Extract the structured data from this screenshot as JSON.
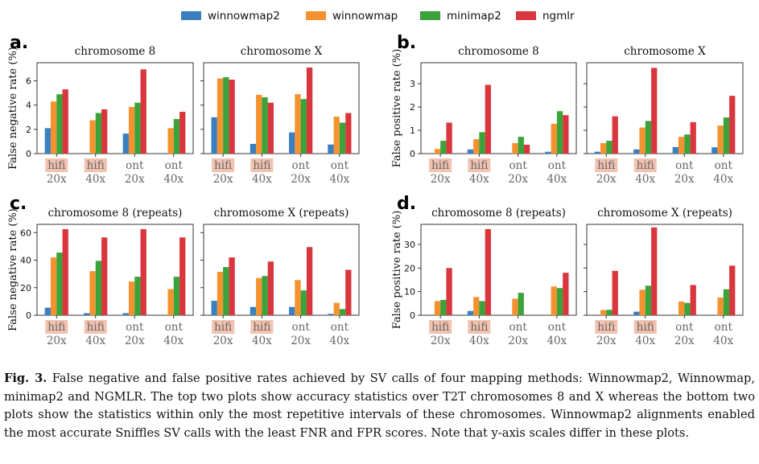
{
  "colors": {
    "winnowmap2": "#3a7fbf",
    "winnowmap": "#f5922f",
    "minimap2": "#3aa33a",
    "ngmlr": "#d9363e",
    "hifi_highlight": "#f2c2b0"
  },
  "legend": {
    "entries": [
      {
        "name": "winnowmap2",
        "color_key": "winnowmap2"
      },
      {
        "name": "winnowmap",
        "color_key": "winnowmap"
      },
      {
        "name": "minimap2",
        "color_key": "minimap2"
      },
      {
        "name": "ngmlr",
        "color_key": "ngmlr"
      }
    ]
  },
  "chart_data": [
    {
      "panel": "a.",
      "type": "bar",
      "ylabel": "False negative rate (%)",
      "ylim": [
        0,
        7.5
      ],
      "yticks": [
        0,
        2,
        4,
        6
      ],
      "categories": [
        [
          "hifi",
          "20x"
        ],
        [
          "hifi",
          "40x"
        ],
        [
          "ont",
          "20x"
        ],
        [
          "ont",
          "40x"
        ]
      ],
      "subplots": [
        {
          "title": "chromosome 8",
          "series": [
            {
              "name": "winnowmap2",
              "values": [
                2.1,
                0.05,
                1.65,
                0.05
              ]
            },
            {
              "name": "winnowmap",
              "values": [
                4.3,
                2.75,
                3.85,
                2.1
              ]
            },
            {
              "name": "minimap2",
              "values": [
                4.9,
                3.35,
                4.2,
                2.85
              ]
            },
            {
              "name": "ngmlr",
              "values": [
                5.3,
                3.65,
                6.95,
                3.45
              ]
            }
          ]
        },
        {
          "title": "chromosome X",
          "series": [
            {
              "name": "winnowmap2",
              "values": [
                3.0,
                0.8,
                1.75,
                0.75
              ]
            },
            {
              "name": "winnowmap",
              "values": [
                6.2,
                4.85,
                4.9,
                3.05
              ]
            },
            {
              "name": "minimap2",
              "values": [
                6.3,
                4.65,
                4.5,
                2.55
              ]
            },
            {
              "name": "ngmlr",
              "values": [
                6.1,
                4.2,
                7.1,
                3.35
              ]
            }
          ]
        }
      ]
    },
    {
      "panel": "b.",
      "type": "bar",
      "ylabel": "False positive rate (%)",
      "ylim": [
        0,
        3.9
      ],
      "yticks": [
        0,
        1,
        2,
        3
      ],
      "categories": [
        [
          "hifi",
          "20x"
        ],
        [
          "hifi",
          "40x"
        ],
        [
          "ont",
          "20x"
        ],
        [
          "ont",
          "40x"
        ]
      ],
      "subplots": [
        {
          "title": "chromosome 8",
          "series": [
            {
              "name": "winnowmap2",
              "values": [
                0.0,
                0.18,
                0.0,
                0.08
              ]
            },
            {
              "name": "winnowmap",
              "values": [
                0.2,
                0.62,
                0.45,
                1.28
              ]
            },
            {
              "name": "minimap2",
              "values": [
                0.55,
                0.92,
                0.72,
                1.82
              ]
            },
            {
              "name": "ngmlr",
              "values": [
                1.33,
                2.95,
                0.38,
                1.65
              ]
            }
          ]
        },
        {
          "title": "chromosome X",
          "series": [
            {
              "name": "winnowmap2",
              "values": [
                0.08,
                0.18,
                0.28,
                0.27
              ]
            },
            {
              "name": "winnowmap",
              "values": [
                0.45,
                1.12,
                0.72,
                1.2
              ]
            },
            {
              "name": "minimap2",
              "values": [
                0.55,
                1.4,
                0.82,
                1.55
              ]
            },
            {
              "name": "ngmlr",
              "values": [
                1.6,
                3.68,
                1.35,
                2.48
              ]
            }
          ]
        }
      ]
    },
    {
      "panel": "c.",
      "type": "bar",
      "ylabel": "False negative rate (%)",
      "ylim": [
        0,
        66
      ],
      "yticks": [
        0,
        20,
        40,
        60
      ],
      "categories": [
        [
          "hifi",
          "20x"
        ],
        [
          "hifi",
          "40x"
        ],
        [
          "ont",
          "20x"
        ],
        [
          "ont",
          "40x"
        ]
      ],
      "subplots": [
        {
          "title": "chromosome 8 (repeats)",
          "series": [
            {
              "name": "winnowmap2",
              "values": [
                5.5,
                1.5,
                1.5,
                0.0
              ]
            },
            {
              "name": "winnowmap",
              "values": [
                42,
                32,
                24.5,
                19
              ]
            },
            {
              "name": "minimap2",
              "values": [
                45.5,
                39.5,
                28,
                28
              ]
            },
            {
              "name": "ngmlr",
              "values": [
                62.5,
                56.5,
                62.5,
                56.5
              ]
            }
          ]
        },
        {
          "title": "chromosome X (repeats)",
          "series": [
            {
              "name": "winnowmap2",
              "values": [
                10.5,
                6.0,
                6.0,
                1.0
              ]
            },
            {
              "name": "winnowmap",
              "values": [
                31.5,
                27,
                25.5,
                9
              ]
            },
            {
              "name": "minimap2",
              "values": [
                35,
                28.5,
                18,
                4.5
              ]
            },
            {
              "name": "ngmlr",
              "values": [
                42,
                39,
                49.5,
                33
              ]
            }
          ]
        }
      ]
    },
    {
      "panel": "d.",
      "type": "bar",
      "ylabel": "False positive rate (%)",
      "ylim": [
        0,
        38.5
      ],
      "yticks": [
        0,
        10,
        20,
        30
      ],
      "categories": [
        [
          "hifi",
          "20x"
        ],
        [
          "hifi",
          "40x"
        ],
        [
          "ont",
          "20x"
        ],
        [
          "ont",
          "40x"
        ]
      ],
      "subplots": [
        {
          "title": "chromosome 8 (repeats)",
          "series": [
            {
              "name": "winnowmap2",
              "values": [
                0.0,
                1.8,
                0.0,
                0.0
              ]
            },
            {
              "name": "winnowmap",
              "values": [
                6.0,
                7.7,
                7.0,
                12.2
              ]
            },
            {
              "name": "minimap2",
              "values": [
                6.5,
                6.0,
                9.5,
                11.5
              ]
            },
            {
              "name": "ngmlr",
              "values": [
                20,
                36.5,
                0.0,
                18
              ]
            }
          ]
        },
        {
          "title": "chromosome X (repeats)",
          "series": [
            {
              "name": "winnowmap2",
              "values": [
                0.0,
                1.5,
                0.0,
                0.0
              ]
            },
            {
              "name": "winnowmap",
              "values": [
                2.2,
                10.8,
                5.8,
                7.5
              ]
            },
            {
              "name": "minimap2",
              "values": [
                2.3,
                12.5,
                5.2,
                11.0
              ]
            },
            {
              "name": "ngmlr",
              "values": [
                18.8,
                37.2,
                12.8,
                21.0
              ]
            }
          ]
        }
      ]
    }
  ],
  "caption": {
    "label": "Fig. 3.",
    "text": "False negative and false positive rates achieved by SV calls of four mapping methods: Winnowmap2, Winnowmap, minimap2 and NGMLR. The top two plots show accuracy statistics over T2T chromosomes 8 and X whereas the bottom two plots show the statistics within only the most repetitive intervals of these chromosomes. Winnowmap2 alignments enabled the most accurate Sniffles SV calls with the least FNR and FPR scores. Note that y-axis scales differ in these plots."
  }
}
